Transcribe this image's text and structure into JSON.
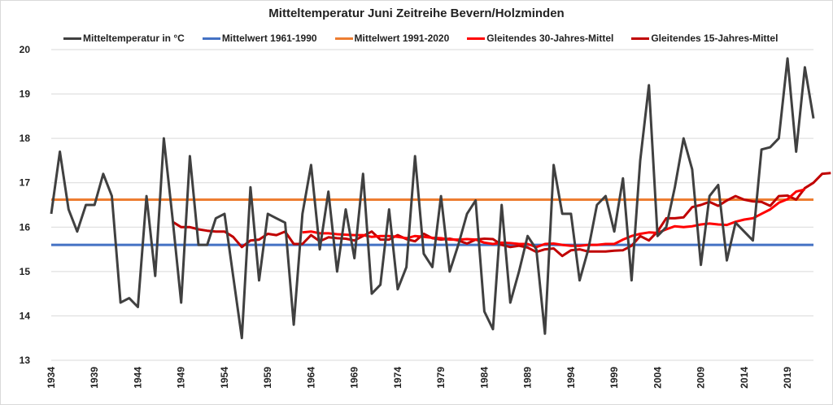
{
  "chart_data": {
    "type": "line",
    "title": "Mitteltemperatur Juni Zeitreihe Bevern/Holzminden",
    "xlabel": "",
    "ylabel": "",
    "ylim": [
      13,
      20
    ],
    "xlim": [
      1934,
      2022
    ],
    "y_ticks": [
      "13",
      "14",
      "15",
      "16",
      "17",
      "18",
      "19",
      "20"
    ],
    "x_ticks": [
      "1934",
      "1939",
      "1944",
      "1949",
      "1954",
      "1959",
      "1964",
      "1969",
      "1974",
      "1979",
      "1984",
      "1989",
      "1994",
      "1999",
      "2004",
      "2009",
      "2014",
      "2019"
    ],
    "grid": true,
    "legend_position": "top",
    "series": [
      {
        "name": "Mitteltemperatur in °C",
        "color": "#404040",
        "start_year": 1934,
        "values": [
          16.3,
          17.7,
          16.4,
          15.9,
          16.5,
          16.5,
          17.2,
          16.7,
          14.3,
          14.4,
          14.2,
          16.7,
          14.9,
          18.0,
          16.2,
          14.3,
          17.6,
          15.6,
          15.6,
          16.2,
          16.3,
          14.9,
          13.5,
          16.9,
          14.8,
          16.3,
          16.2,
          16.1,
          13.8,
          16.3,
          17.4,
          15.5,
          16.8,
          15.0,
          16.4,
          15.3,
          17.2,
          14.5,
          14.7,
          16.4,
          14.6,
          15.1,
          17.6,
          15.4,
          15.1,
          16.7,
          15.0,
          15.6,
          16.3,
          16.6,
          14.1,
          13.7,
          16.5,
          14.3,
          15.0,
          15.8,
          15.5,
          13.6,
          17.4,
          16.3,
          16.3,
          14.8,
          15.5,
          16.5,
          16.7,
          15.9,
          17.1,
          14.8,
          17.5,
          19.2,
          15.8,
          16.0,
          16.9,
          18.0,
          17.3,
          15.15,
          16.7,
          16.95,
          15.25,
          16.1,
          15.9,
          15.7,
          17.75,
          17.8,
          18.0,
          19.8,
          17.7,
          19.6,
          18.45
        ]
      },
      {
        "name": "Mittelwert 1961-1990",
        "color": "#4472c4",
        "constant": 15.6
      },
      {
        "name": "Mittelwert 1991-2020",
        "color": "#ed7d31",
        "constant": 16.62
      },
      {
        "name": "Gleitendes 30-Jahres-Mittel",
        "color": "#ff0000",
        "start_year": 1963,
        "values": [
          15.88,
          15.9,
          15.86,
          15.86,
          15.84,
          15.83,
          15.82,
          15.82,
          15.78,
          15.8,
          15.8,
          15.78,
          15.75,
          15.8,
          15.78,
          15.76,
          15.75,
          15.72,
          15.72,
          15.73,
          15.72,
          15.65,
          15.62,
          15.65,
          15.64,
          15.62,
          15.62,
          15.55,
          15.62,
          15.63,
          15.6,
          15.58,
          15.58,
          15.6,
          15.6,
          15.62,
          15.62,
          15.72,
          15.8,
          15.85,
          15.88,
          15.87,
          15.95,
          16.02,
          16.0,
          16.02,
          16.06,
          16.08,
          16.06,
          16.05,
          16.12,
          16.17,
          16.2,
          16.3,
          16.4,
          16.55,
          16.63,
          16.8,
          16.85
        ]
      },
      {
        "name": "Gleitendes 15-Jahres-Mittel",
        "color": "#c00000",
        "start_year": 1948,
        "values": [
          16.12,
          16.0,
          16.0,
          15.95,
          15.92,
          15.9,
          15.9,
          15.78,
          15.55,
          15.7,
          15.72,
          15.85,
          15.82,
          15.9,
          15.62,
          15.62,
          15.82,
          15.68,
          15.77,
          15.75,
          15.74,
          15.7,
          15.8,
          15.9,
          15.72,
          15.72,
          15.82,
          15.73,
          15.68,
          15.85,
          15.75,
          15.72,
          15.74,
          15.7,
          15.63,
          15.72,
          15.74,
          15.73,
          15.6,
          15.55,
          15.58,
          15.54,
          15.44,
          15.5,
          15.52,
          15.35,
          15.48,
          15.5,
          15.45,
          15.45,
          15.45,
          15.47,
          15.48,
          15.58,
          15.8,
          15.7,
          15.9,
          16.2,
          16.2,
          16.22,
          16.45,
          16.5,
          16.57,
          16.48,
          16.6,
          16.7,
          16.62,
          16.58,
          16.57,
          16.48,
          16.7,
          16.71,
          16.62,
          16.88,
          17.0,
          17.2,
          17.22
        ]
      }
    ]
  }
}
